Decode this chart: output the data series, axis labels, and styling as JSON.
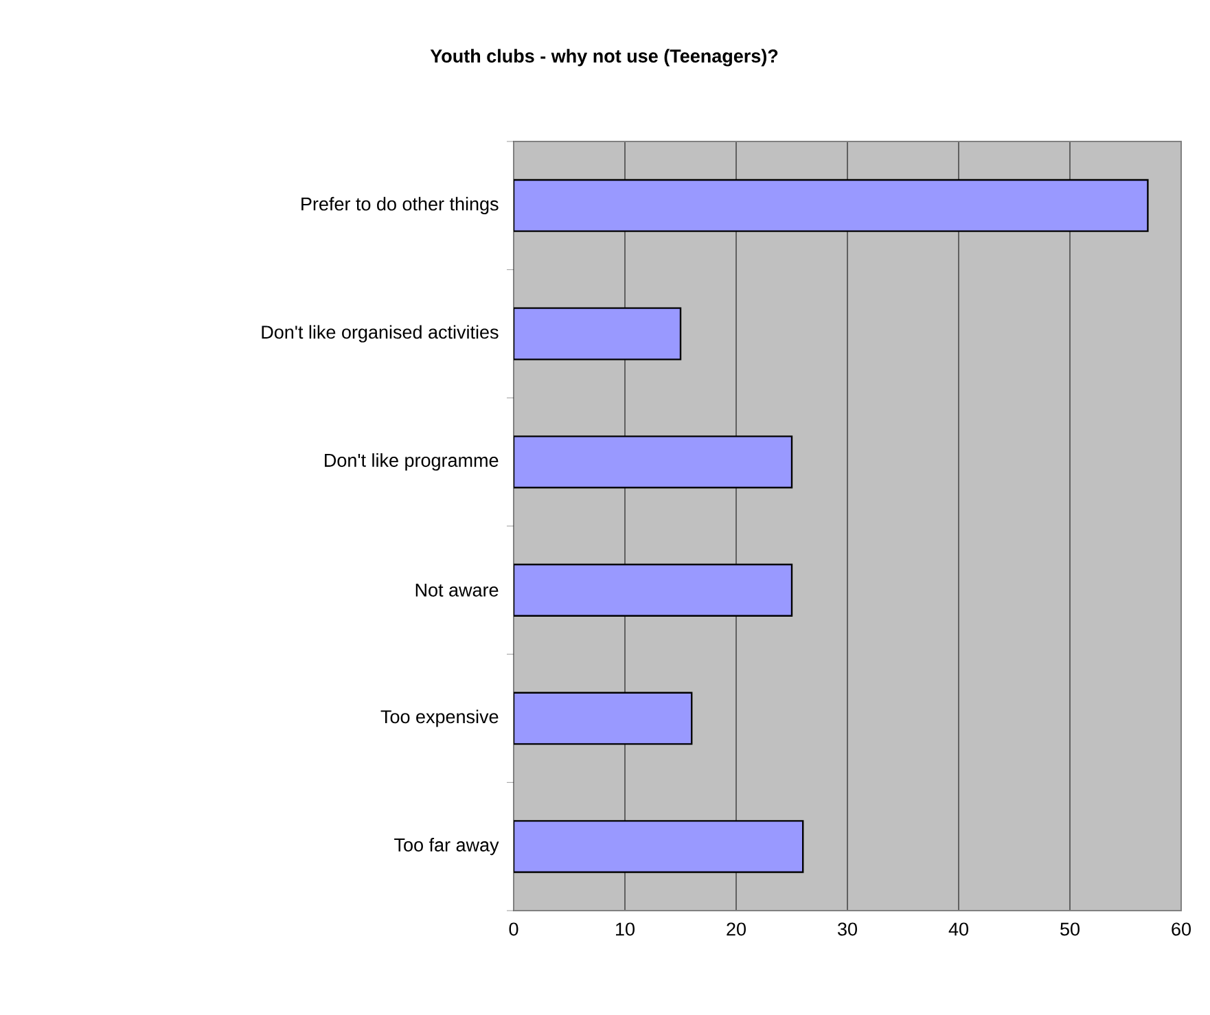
{
  "chart_data": {
    "type": "bar",
    "orientation": "horizontal",
    "title": "Youth clubs - why not use (Teenagers)?",
    "categories": [
      "Prefer to do other things",
      "Don't like organised activities",
      "Don't like programme",
      "Not aware",
      "Too expensive",
      "Too far away"
    ],
    "values": [
      57,
      15,
      25,
      25,
      16,
      26
    ],
    "color": "#9999ff",
    "xlim": [
      0,
      60
    ],
    "xticks": [
      0,
      10,
      20,
      30,
      40,
      50,
      60
    ],
    "grid": "x"
  }
}
